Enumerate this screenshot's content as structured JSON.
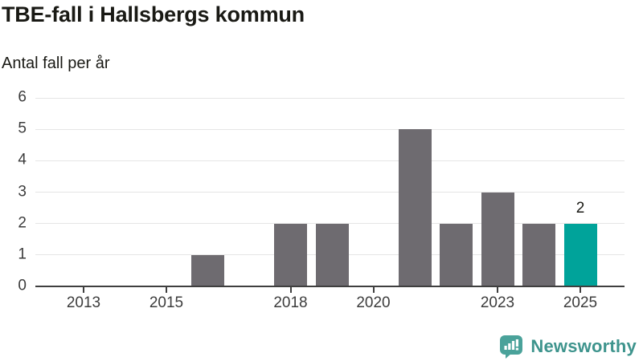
{
  "chart_data": {
    "type": "bar",
    "title": "TBE-fall i Hallsbergs kommun",
    "subtitle": "Antal fall per år",
    "categories": [
      2013,
      2014,
      2015,
      2016,
      2017,
      2018,
      2019,
      2020,
      2021,
      2022,
      2023,
      2024,
      2025
    ],
    "values": [
      0,
      0,
      0,
      1,
      0,
      2,
      2,
      0,
      5,
      2,
      3,
      2,
      2
    ],
    "ylim": [
      0,
      6
    ],
    "yticks": [
      0,
      1,
      2,
      3,
      4,
      5,
      6
    ],
    "xticks": [
      2013,
      2015,
      2018,
      2020,
      2023,
      2025
    ],
    "grid": true,
    "legend": "none",
    "bar_color": "#6e6b70",
    "highlight": {
      "category": 2025,
      "value": 2,
      "value_label": "2",
      "color": "#00a39a"
    }
  },
  "colors": {
    "title_text": "#191914",
    "tick_text": "#3c3c3c",
    "axis": "#3f3f3f",
    "grid": "#e5e5e5",
    "bar": "#6e6b70",
    "highlight_bar": "#00a39a",
    "logo": "#3e948d",
    "logo_icon": "#4aa29a",
    "background": "#ffffff"
  },
  "logo": {
    "text": "Newsworthy",
    "icon": "newsworthy-bar-chart-speech-bubble-icon"
  }
}
